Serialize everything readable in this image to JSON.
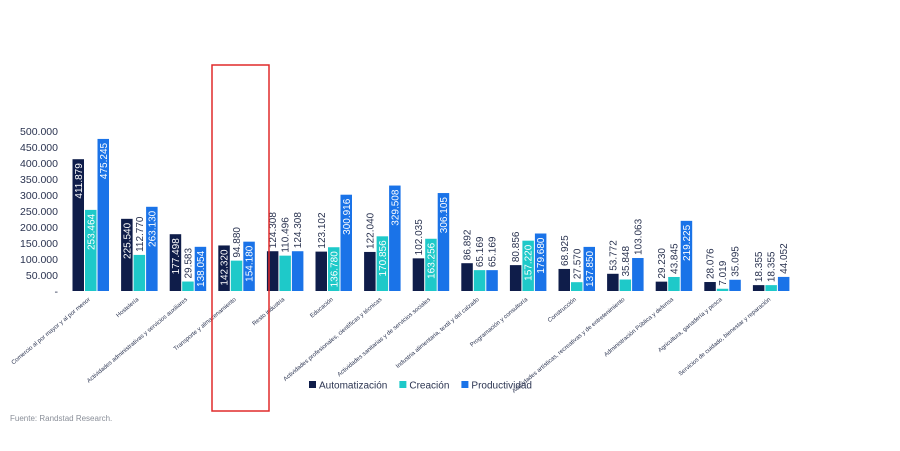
{
  "chart_data": {
    "type": "bar",
    "categories": [
      "Comercio al por mayor y al por menor",
      "Hostelería",
      "Actividades administrativas y servicios auxiliares",
      "Transporte y almacenamiento",
      "Resto industria",
      "Educación",
      "Actividades profesionales, científicas y técnicas",
      "Actividades sanitarias y de servicios sociales",
      "Industria alimentaria, textil y del calzado",
      "Programación y consultoría",
      "Construcción",
      "Actividades artísticas, recreativas y de entretenimiento",
      "Administración Pública y defensa",
      "Agricultura, ganadería y pesca",
      "Servicios de cuidado, bienestar y reparación"
    ],
    "series": [
      {
        "name": "Automatización",
        "color": "#0f1d4a",
        "values": [
          411879,
          225540,
          177498,
          142320,
          124308,
          123102,
          122040,
          102035,
          86892,
          80856,
          68925,
          53772,
          29230,
          28076,
          18355
        ],
        "labels": [
          "411.879",
          "225.540",
          "177.498",
          "142.320",
          "124.308",
          "123.102",
          "122.040",
          "102.035",
          "86.892",
          "80.856",
          "68.925",
          "53.772",
          "29.230",
          "28.076",
          "18.355"
        ]
      },
      {
        "name": "Creación",
        "color": "#1ec9c9",
        "values": [
          253464,
          112770,
          29583,
          94880,
          110496,
          136780,
          170856,
          163256,
          65169,
          157220,
          27570,
          35848,
          43845,
          7019,
          18355
        ],
        "labels": [
          "253.464",
          "112.770",
          "29.583",
          "94.880",
          "110.496",
          "136.780",
          "170.856",
          "163.256",
          "65.169",
          "157.220",
          "27.570",
          "35.848",
          "43.845",
          "7.019",
          "18.355"
        ]
      },
      {
        "name": "Productividad",
        "color": "#1a73e8",
        "values": [
          475245,
          263130,
          138054,
          154180,
          124308,
          300916,
          329508,
          306105,
          65169,
          179680,
          137850,
          103063,
          219225,
          35095,
          44052
        ],
        "labels": [
          "475.245",
          "263.130",
          "138.054",
          "154.180",
          "124.308",
          "300.916",
          "329.508",
          "306.105",
          "65.169",
          "179.680",
          "137.850",
          "103.063",
          "219.225",
          "35.095",
          "44.052"
        ]
      }
    ],
    "yticks": [
      "500.000",
      "450.000",
      "400.000",
      "350.000",
      "300.000",
      "250.000",
      "200.000",
      "150.000",
      "100.000",
      "50.000",
      "-"
    ],
    "ylim": [
      0,
      500000
    ],
    "legend_position": "bottom",
    "highlight_category": "Transporte y almacenamiento",
    "highlight_color": "#e02a2a"
  },
  "source": "Fuente: Randstad Research."
}
